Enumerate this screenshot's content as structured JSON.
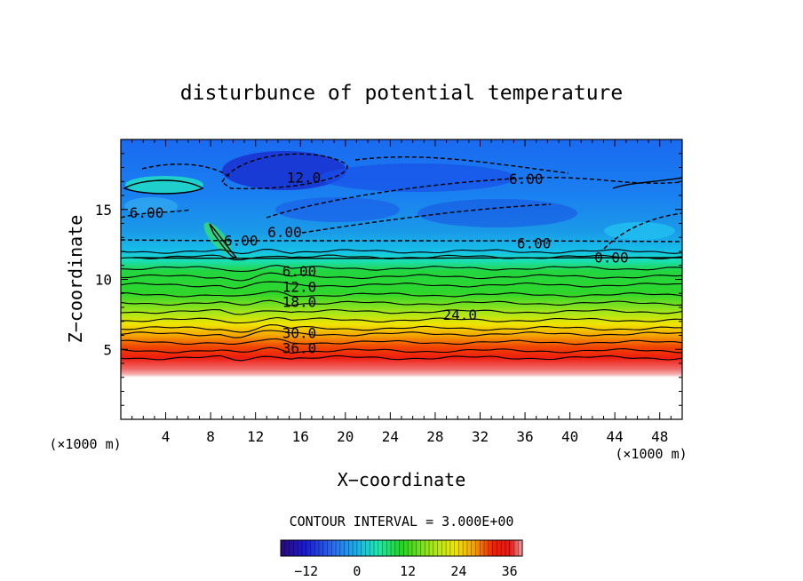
{
  "chart_data": {
    "type": "heatmap",
    "title": "disturbunce of potential temperature",
    "xlabel": "X−coordinate",
    "ylabel": "Z−coordinate",
    "x_unit": "(×1000 m)",
    "x_unit_right": "(×1000 m)",
    "xlim": [
      0,
      50
    ],
    "ylim": [
      0,
      20
    ],
    "x_ticks": [
      4,
      8,
      12,
      16,
      20,
      24,
      28,
      32,
      36,
      40,
      44,
      48
    ],
    "y_ticks": [
      5,
      10,
      15
    ],
    "contour_interval_text": "CONTOUR INTERVAL = 3.000E+00",
    "contour_interval": 3,
    "colorbar": {
      "min": -18,
      "max": 39,
      "ticks": [
        -12,
        0,
        12,
        24,
        36
      ],
      "tick_labels": [
        "−12",
        "0",
        "12",
        "24",
        "36"
      ],
      "colors": [
        "#2a0a7a",
        "#1a1ad0",
        "#2a6ef0",
        "#1ab4e8",
        "#1ee8b0",
        "#22d422",
        "#9ee618",
        "#f0e800",
        "#f4a000",
        "#f02000",
        "#e81818",
        "#f0a0a0"
      ]
    },
    "empty_region_below_z": 4.3,
    "series": [
      {
        "values": [
          0,
          3,
          6,
          9,
          12,
          15,
          18,
          21,
          24,
          27,
          30,
          33,
          36,
          39
        ],
        "z": [
          12,
          11.6,
          10.8,
          10.2,
          9.6,
          8.9,
          8.3,
          7.7,
          7.1,
          6.5,
          6.1,
          5.5,
          4.9,
          4.4
        ]
      }
    ],
    "contour_labels": [
      {
        "text": "12.0",
        "x": 16.3,
        "z": 17.3
      },
      {
        "text": "6.00",
        "x": 36.1,
        "z": 17.2
      },
      {
        "text": "6.00",
        "x": 2.3,
        "z": 14.8
      },
      {
        "text": "6.00",
        "x": 10.7,
        "z": 12.8
      },
      {
        "text": "6.00",
        "x": 14.6,
        "z": 13.4
      },
      {
        "text": "6.00",
        "x": 36.8,
        "z": 12.6
      },
      {
        "text": "0.00",
        "x": 43.7,
        "z": 11.6
      },
      {
        "text": "6.00",
        "x": 15.9,
        "z": 10.6
      },
      {
        "text": "12.0",
        "x": 15.9,
        "z": 9.5
      },
      {
        "text": "18.0",
        "x": 15.9,
        "z": 8.4
      },
      {
        "text": "24.0",
        "x": 30.2,
        "z": 7.5
      },
      {
        "text": "30.0",
        "x": 15.9,
        "z": 6.2
      },
      {
        "text": "36.0",
        "x": 15.9,
        "z": 5.1
      }
    ]
  }
}
